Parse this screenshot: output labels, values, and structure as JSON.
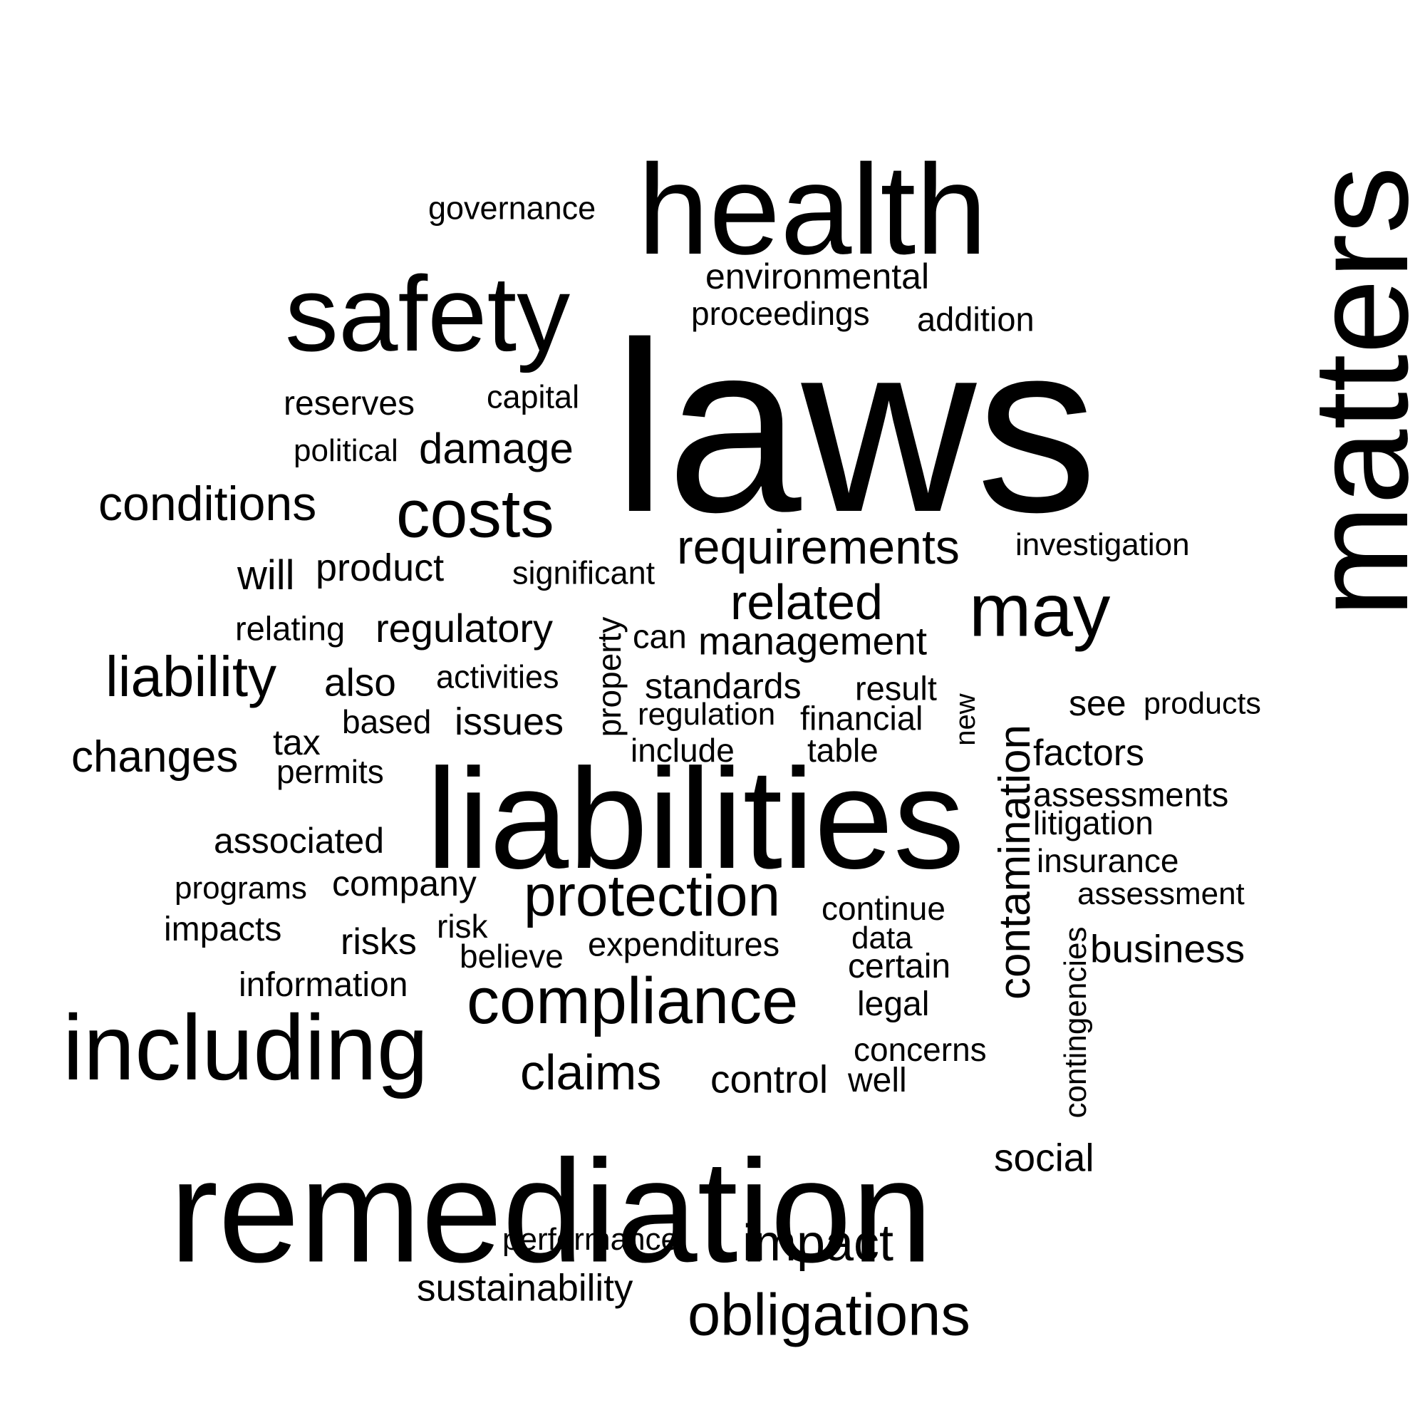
{
  "word_cloud": {
    "text_color": "#000000",
    "background_color": "#ffffff",
    "words": [
      {
        "text": "laws"
      },
      {
        "text": "liabilities"
      },
      {
        "text": "remediation"
      },
      {
        "text": "matters",
        "orientation": "vertical"
      },
      {
        "text": "health"
      },
      {
        "text": "safety"
      },
      {
        "text": "including"
      },
      {
        "text": "compliance"
      },
      {
        "text": "costs"
      },
      {
        "text": "protection"
      },
      {
        "text": "obligations"
      },
      {
        "text": "may"
      },
      {
        "text": "requirements"
      },
      {
        "text": "related"
      },
      {
        "text": "conditions"
      },
      {
        "text": "liability"
      },
      {
        "text": "impact"
      },
      {
        "text": "claims"
      },
      {
        "text": "contamination",
        "orientation": "vertical"
      },
      {
        "text": "environmental"
      },
      {
        "text": "damage"
      },
      {
        "text": "management"
      },
      {
        "text": "regulatory"
      },
      {
        "text": "product"
      },
      {
        "text": "changes"
      },
      {
        "text": "business"
      },
      {
        "text": "control"
      },
      {
        "text": "factors"
      },
      {
        "text": "social"
      },
      {
        "text": "also"
      },
      {
        "text": "standards"
      },
      {
        "text": "issues"
      },
      {
        "text": "will"
      },
      {
        "text": "associated"
      },
      {
        "text": "sustainability"
      },
      {
        "text": "risks"
      },
      {
        "text": "addition"
      },
      {
        "text": "reserves"
      },
      {
        "text": "proceedings"
      },
      {
        "text": "capital"
      },
      {
        "text": "political"
      },
      {
        "text": "significant"
      },
      {
        "text": "investigation"
      },
      {
        "text": "relating"
      },
      {
        "text": "activities"
      },
      {
        "text": "can"
      },
      {
        "text": "property",
        "orientation": "vertical"
      },
      {
        "text": "result"
      },
      {
        "text": "see"
      },
      {
        "text": "products"
      },
      {
        "text": "regulation"
      },
      {
        "text": "financial"
      },
      {
        "text": "new",
        "orientation": "vertical"
      },
      {
        "text": "based"
      },
      {
        "text": "tax"
      },
      {
        "text": "include"
      },
      {
        "text": "table"
      },
      {
        "text": "permits"
      },
      {
        "text": "assessments"
      },
      {
        "text": "litigation"
      },
      {
        "text": "insurance"
      },
      {
        "text": "company"
      },
      {
        "text": "programs"
      },
      {
        "text": "assessment"
      },
      {
        "text": "continue"
      },
      {
        "text": "impacts"
      },
      {
        "text": "risk"
      },
      {
        "text": "expenditures"
      },
      {
        "text": "data"
      },
      {
        "text": "believe"
      },
      {
        "text": "certain"
      },
      {
        "text": "contingencies",
        "orientation": "vertical"
      },
      {
        "text": "information"
      },
      {
        "text": "legal"
      },
      {
        "text": "concerns"
      },
      {
        "text": "well"
      },
      {
        "text": "performance"
      },
      {
        "text": "governance"
      }
    ]
  }
}
